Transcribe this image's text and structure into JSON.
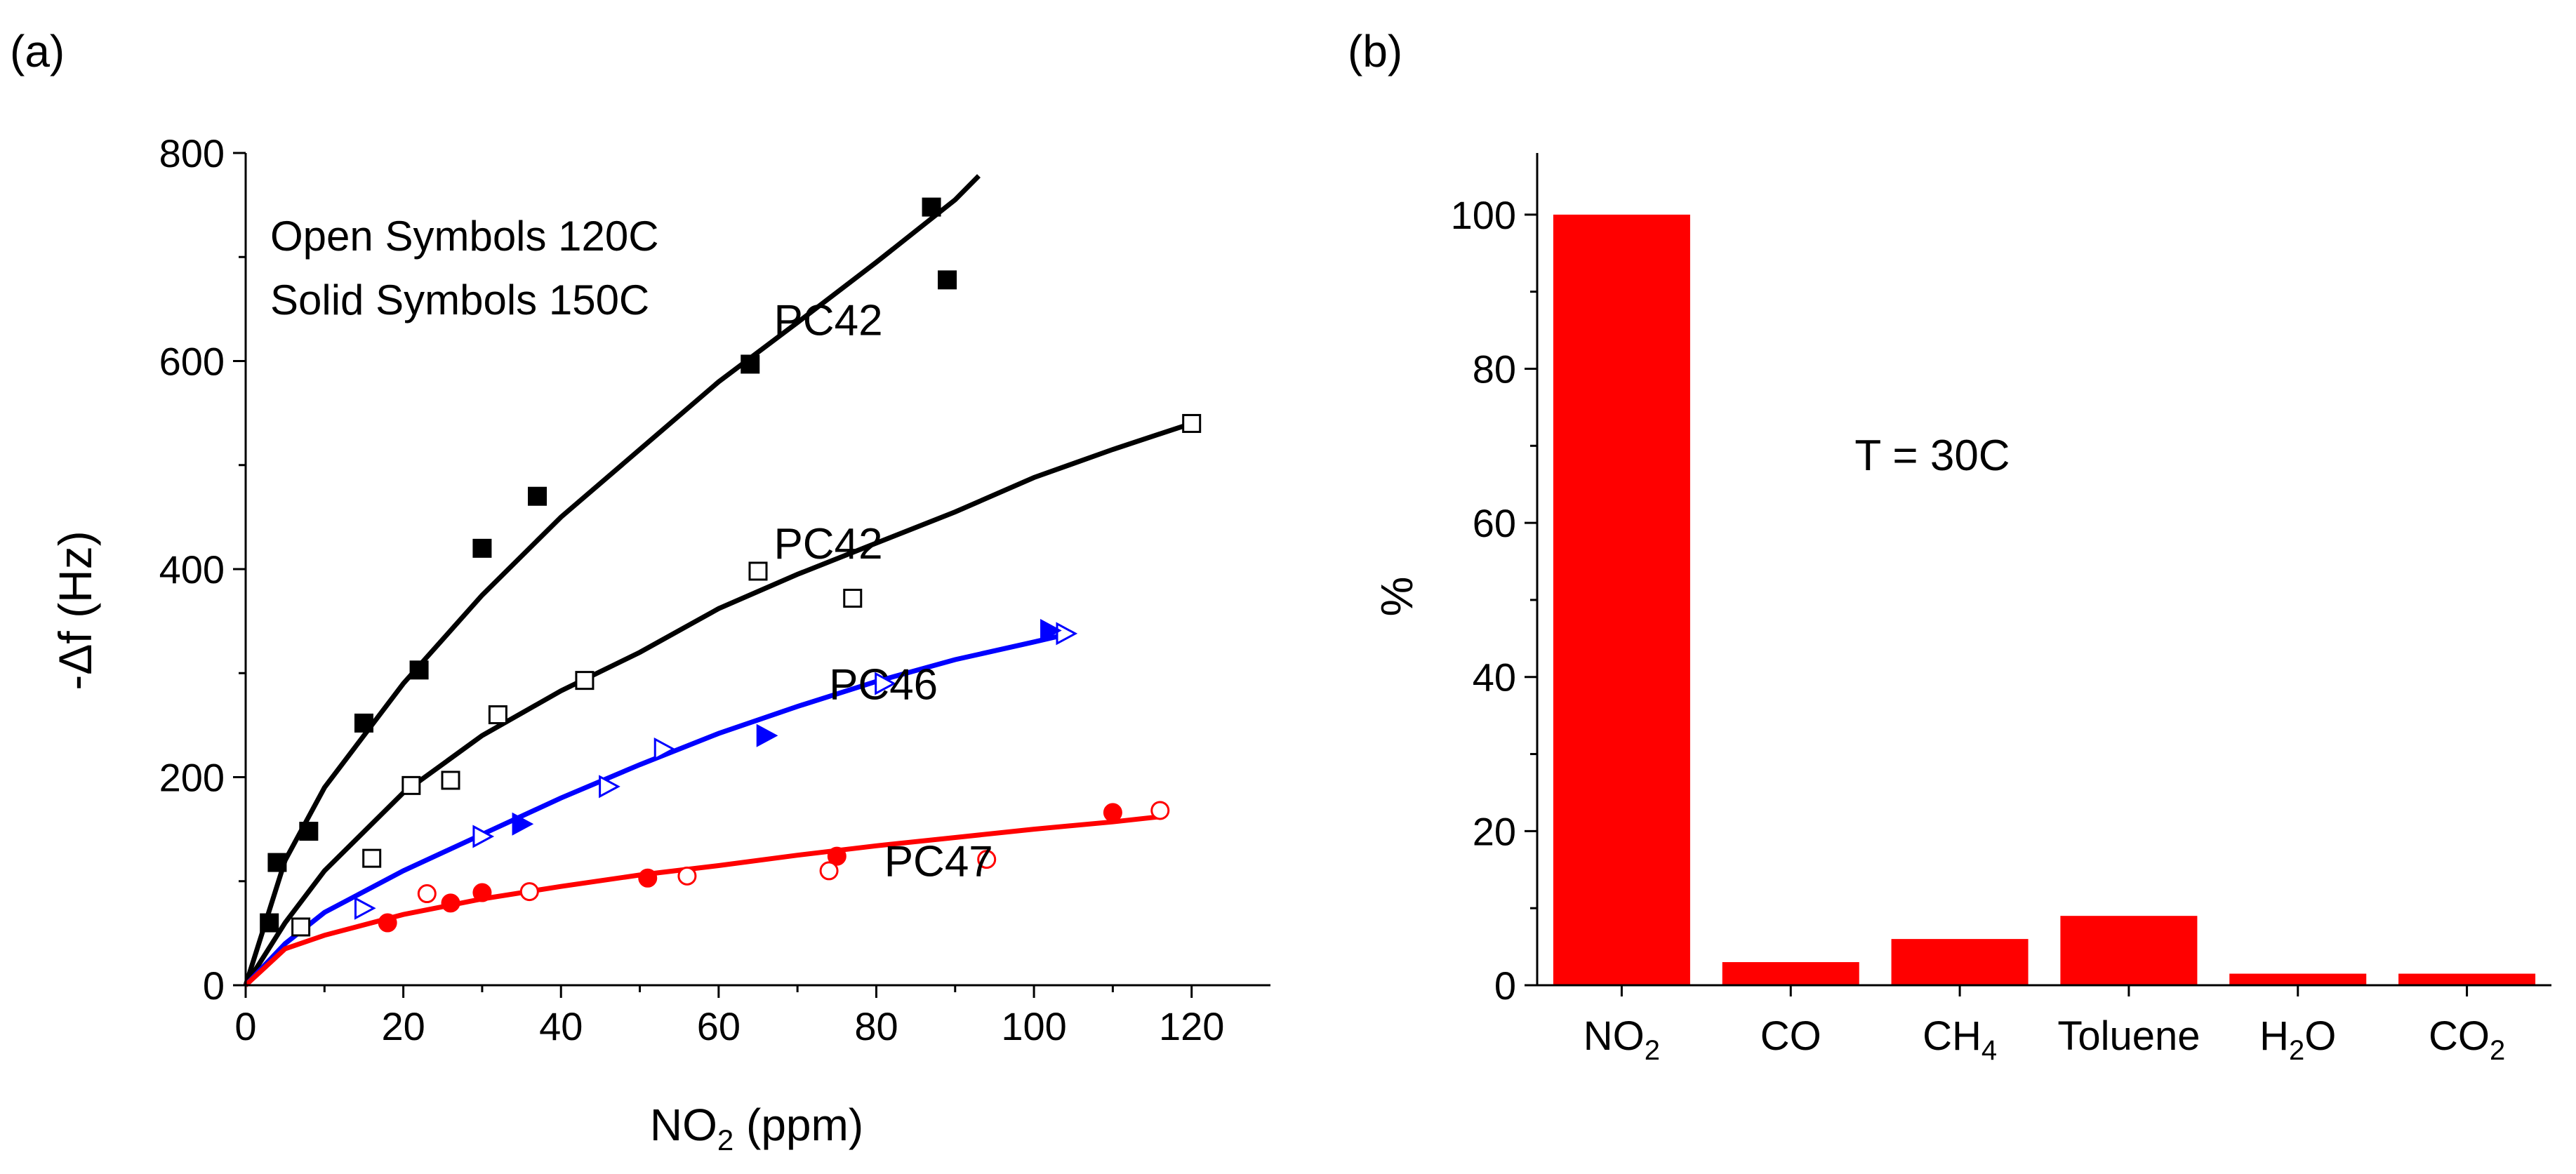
{
  "chart_data": [
    {
      "panel_label": "(a)",
      "type": "scatter",
      "xlabel_main": "NO",
      "xlabel_sub": "2",
      "xlabel_tail": " (ppm)",
      "ylabel": "-Δf (Hz)",
      "xlim": [
        0,
        130
      ],
      "ylim": [
        0,
        800
      ],
      "xticks": [
        "0",
        "20",
        "40",
        "60",
        "80",
        "100",
        "120"
      ],
      "yticks": [
        "0",
        "200",
        "400",
        "600",
        "800"
      ],
      "legend": [
        "Open Symbols 120C",
        "Solid Symbols 150C"
      ],
      "series": [
        {
          "name": "PC42 solid (150C)",
          "temperature": "150C",
          "marker": "square",
          "filled": true,
          "color": "#000000",
          "points": [
            [
              3,
              60
            ],
            [
              4,
              118
            ],
            [
              8,
              148
            ],
            [
              15,
              252
            ],
            [
              22,
              303
            ],
            [
              30,
              420
            ],
            [
              37,
              470
            ],
            [
              64,
              597
            ],
            [
              87,
              748
            ],
            [
              89,
              678
            ]
          ],
          "fit": [
            [
              0,
              0
            ],
            [
              5,
              120
            ],
            [
              10,
              190
            ],
            [
              20,
              290
            ],
            [
              30,
              375
            ],
            [
              40,
              450
            ],
            [
              50,
              515
            ],
            [
              60,
              580
            ],
            [
              70,
              637
            ],
            [
              80,
              695
            ],
            [
              90,
              755
            ],
            [
              93,
              778
            ]
          ]
        },
        {
          "name": "PC42 open (120C)",
          "temperature": "120C",
          "marker": "square",
          "filled": false,
          "color": "#000000",
          "points": [
            [
              7,
              56
            ],
            [
              16,
              122
            ],
            [
              21,
              192
            ],
            [
              26,
              197
            ],
            [
              32,
              260
            ],
            [
              43,
              293
            ],
            [
              65,
              398
            ],
            [
              77,
              372
            ],
            [
              120,
              540
            ]
          ],
          "fit": [
            [
              0,
              0
            ],
            [
              5,
              60
            ],
            [
              10,
              110
            ],
            [
              20,
              185
            ],
            [
              30,
              240
            ],
            [
              40,
              283
            ],
            [
              50,
              320
            ],
            [
              60,
              362
            ],
            [
              70,
              395
            ],
            [
              80,
              425
            ],
            [
              90,
              455
            ],
            [
              100,
              488
            ],
            [
              110,
              515
            ],
            [
              120,
              540
            ]
          ]
        },
        {
          "name": "PC46 open (120C)",
          "temperature": "120C",
          "marker": "triangle-right",
          "filled": false,
          "color": "#0000ff",
          "points": [
            [
              15,
              74
            ],
            [
              30,
              143
            ],
            [
              46,
              191
            ],
            [
              53,
              227
            ],
            [
              81,
              290
            ],
            [
              104,
              338
            ]
          ],
          "fit": [
            [
              0,
              0
            ],
            [
              5,
              40
            ],
            [
              10,
              70
            ],
            [
              20,
              110
            ],
            [
              30,
              145
            ],
            [
              40,
              180
            ],
            [
              50,
              212
            ],
            [
              60,
              242
            ],
            [
              70,
              268
            ],
            [
              80,
              292
            ],
            [
              90,
              313
            ],
            [
              100,
              330
            ],
            [
              104,
              337
            ]
          ]
        },
        {
          "name": "PC46 solid (150C)",
          "temperature": "150C",
          "marker": "triangle-right",
          "filled": true,
          "color": "#0000ff",
          "points": [
            [
              35,
              155
            ],
            [
              66,
              240
            ],
            [
              102,
              341
            ]
          ],
          "fit": []
        },
        {
          "name": "PC47 solid (150C)",
          "temperature": "150C",
          "marker": "circle",
          "filled": true,
          "color": "#ff0000",
          "points": [
            [
              18,
              60
            ],
            [
              26,
              79
            ],
            [
              30,
              89
            ],
            [
              51,
              103
            ],
            [
              75,
              124
            ],
            [
              110,
              166
            ]
          ],
          "fit": [
            [
              0,
              0
            ],
            [
              5,
              35
            ],
            [
              10,
              48
            ],
            [
              20,
              68
            ],
            [
              30,
              83
            ],
            [
              40,
              95
            ],
            [
              50,
              106
            ],
            [
              60,
              115
            ],
            [
              70,
              125
            ],
            [
              80,
              134
            ],
            [
              90,
              142
            ],
            [
              100,
              150
            ],
            [
              110,
              157
            ],
            [
              116,
              162
            ]
          ]
        },
        {
          "name": "PC47 open (120C)",
          "temperature": "120C",
          "marker": "circle",
          "filled": false,
          "color": "#ff0000",
          "points": [
            [
              23,
              88
            ],
            [
              36,
              90
            ],
            [
              56,
              105
            ],
            [
              74,
              110
            ],
            [
              94,
              121
            ],
            [
              116,
              168
            ]
          ],
          "fit": []
        }
      ],
      "annotations": [
        {
          "text": "PC42",
          "x": 67,
          "y": 625
        },
        {
          "text": "PC42",
          "x": 67,
          "y": 410
        },
        {
          "text": "PC46",
          "x": 74,
          "y": 275
        },
        {
          "text": "PC47",
          "x": 81,
          "y": 105
        }
      ]
    },
    {
      "panel_label": "(b)",
      "type": "bar",
      "categories": [
        {
          "main": "NO",
          "sub": "2",
          "tail": ""
        },
        {
          "main": "CO",
          "sub": "",
          "tail": ""
        },
        {
          "main": "CH",
          "sub": "4",
          "tail": ""
        },
        {
          "main": "Toluene",
          "sub": "",
          "tail": ""
        },
        {
          "main": "H",
          "sub": "2",
          "tail": "O"
        },
        {
          "main": "CO",
          "sub": "2",
          "tail": ""
        }
      ],
      "values": [
        100,
        3,
        6,
        9,
        1.5,
        1.5
      ],
      "bar_color": "#ff0000",
      "ylabel": "%",
      "ylim": [
        0,
        108
      ],
      "yticks": [
        "0",
        "20",
        "40",
        "60",
        "80",
        "100"
      ],
      "annotation": "T = 30C"
    }
  ]
}
